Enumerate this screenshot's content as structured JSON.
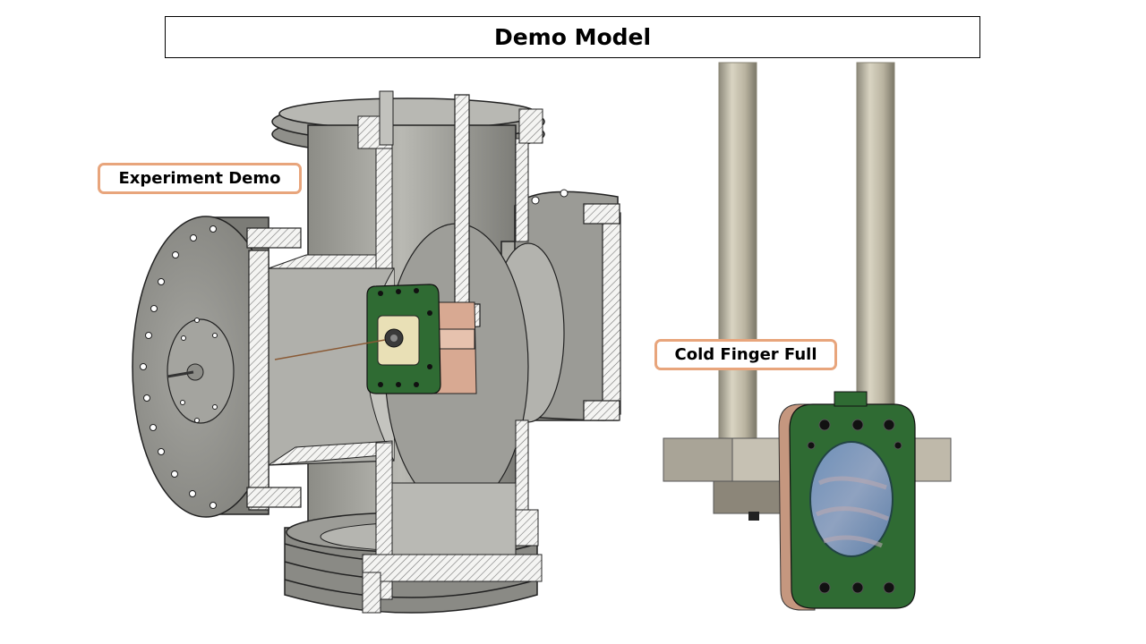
{
  "title": "Demo Model",
  "labels": {
    "experiment": "Experiment Demo",
    "cold_finger": "Cold Finger Full"
  },
  "colors": {
    "steel": "#9a9a94",
    "steel_dark": "#6e6e6a",
    "steel_light": "#c8c8c2",
    "pcb_green": "#2f6b33",
    "copper": "#d8a992",
    "label_border": "#e8a57c"
  }
}
